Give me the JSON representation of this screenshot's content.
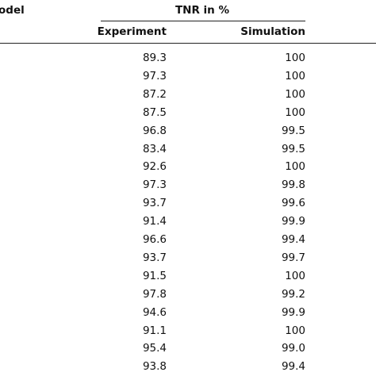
{
  "table": {
    "header": {
      "model": "odel",
      "group": "TNR in %",
      "columns": [
        "Experiment",
        "Simulation"
      ]
    },
    "rows": [
      [
        "89.3",
        "100"
      ],
      [
        "97.3",
        "100"
      ],
      [
        "87.2",
        "100"
      ],
      [
        "87.5",
        "100"
      ],
      [
        "96.8",
        "99.5"
      ],
      [
        "83.4",
        "99.5"
      ],
      [
        "92.6",
        "100"
      ],
      [
        "97.3",
        "99.8"
      ],
      [
        "93.7",
        "99.6"
      ],
      [
        "91.4",
        "99.9"
      ],
      [
        "96.6",
        "99.4"
      ],
      [
        "93.7",
        "99.7"
      ],
      [
        "91.5",
        "100"
      ],
      [
        "97.8",
        "99.2"
      ],
      [
        "94.6",
        "99.9"
      ],
      [
        "91.1",
        "100"
      ],
      [
        "95.4",
        "99.0"
      ],
      [
        "93.8",
        "99.4"
      ]
    ]
  }
}
